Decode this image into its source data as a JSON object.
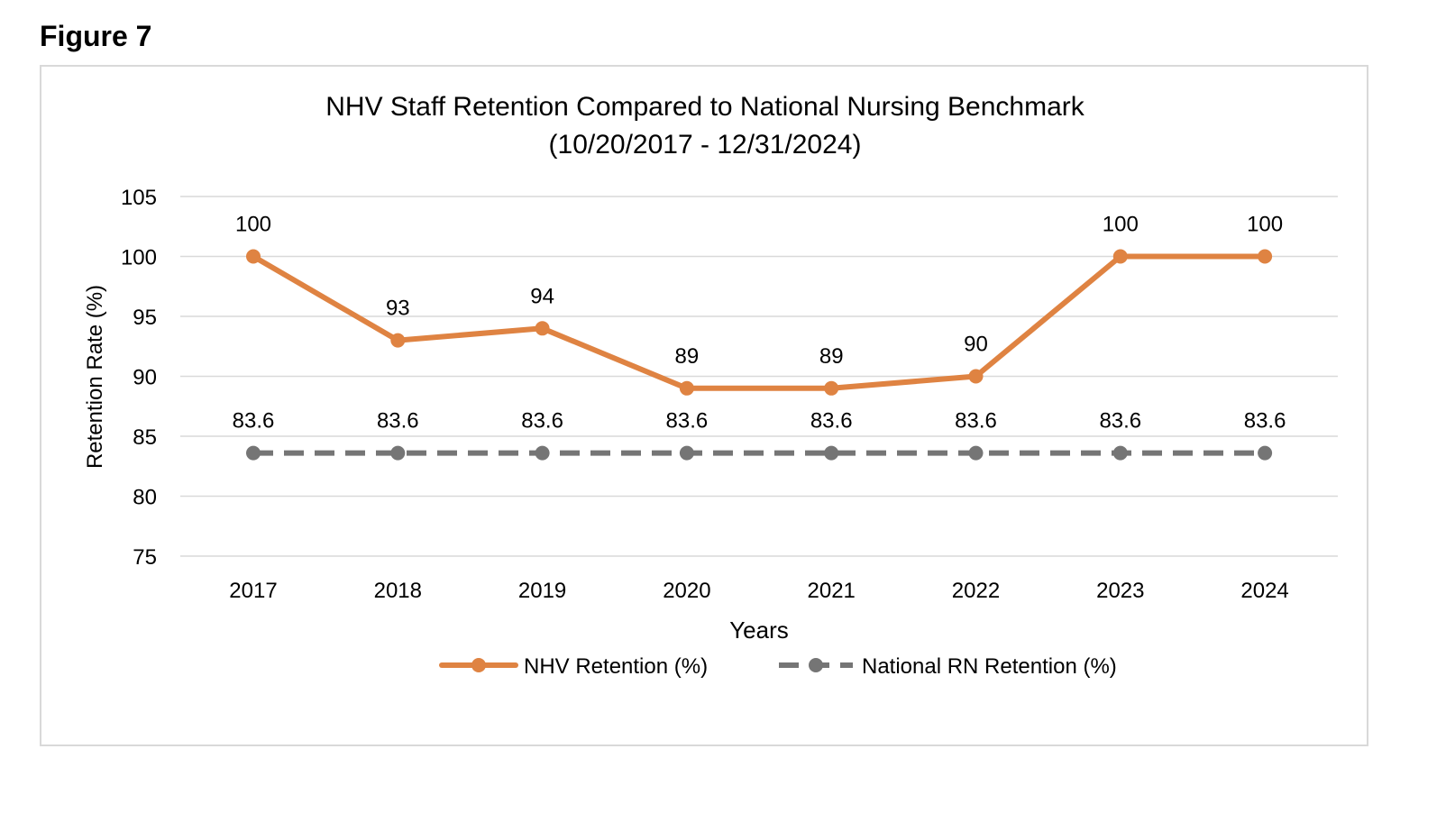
{
  "figure_label": "Figure 7",
  "colors": {
    "nhv": "#df8342",
    "national": "#757575",
    "grid": "#d9d9d9",
    "frame": "#d9d9d9"
  },
  "chart_data": {
    "type": "line",
    "title_lines": [
      "NHV Staff Retention Compared to National Nursing Benchmark",
      "(10/20/2017 - 12/31/2024)"
    ],
    "xlabel": "Years",
    "ylabel": "Retention Rate (%)",
    "categories": [
      "2017",
      "2018",
      "2019",
      "2020",
      "2021",
      "2022",
      "2023",
      "2024"
    ],
    "ylim": [
      75,
      105
    ],
    "yticks": [
      75,
      80,
      85,
      90,
      95,
      100,
      105
    ],
    "grid": true,
    "legend_position": "bottom",
    "series": [
      {
        "name": "NHV Retention (%)",
        "values": [
          100,
          93,
          94,
          89,
          89,
          90,
          100,
          100
        ],
        "labels": [
          "100",
          "93",
          "94",
          "89",
          "89",
          "90",
          "100",
          "100"
        ],
        "style": "solid",
        "color_key": "nhv"
      },
      {
        "name": "National RN Retention (%)",
        "values": [
          83.6,
          83.6,
          83.6,
          83.6,
          83.6,
          83.6,
          83.6,
          83.6
        ],
        "labels": [
          "83.6",
          "83.6",
          "83.6",
          "83.6",
          "83.6",
          "83.6",
          "83.6",
          "83.6"
        ],
        "style": "dashed",
        "color_key": "national"
      }
    ]
  }
}
